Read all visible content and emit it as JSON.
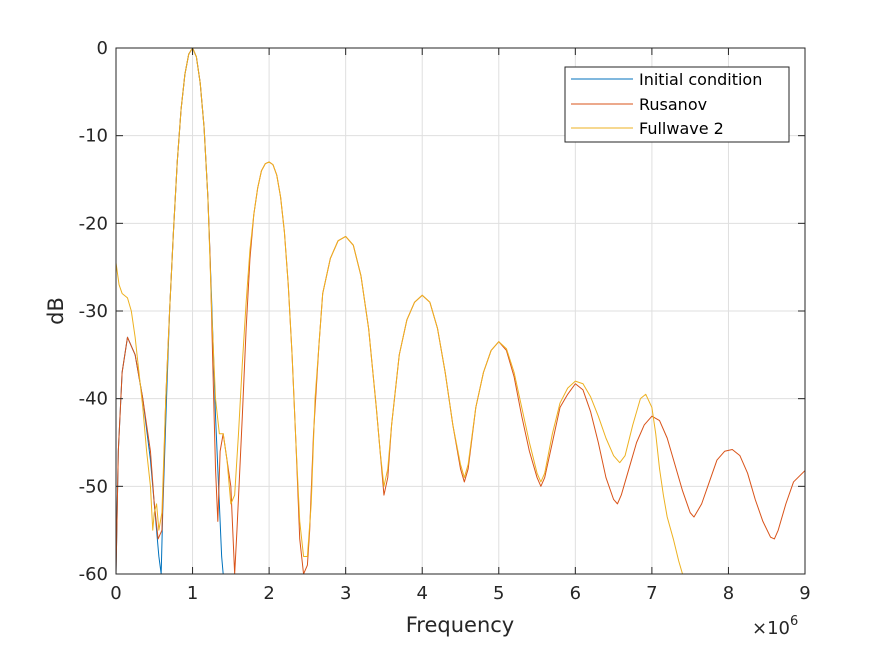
{
  "chart_data": {
    "type": "line",
    "title": "",
    "xlabel": "Frequency",
    "ylabel": "dB",
    "x_multiplier": "×10",
    "x_exponent": "6",
    "xlim": [
      0,
      9000000
    ],
    "ylim": [
      -60,
      0
    ],
    "xticks": [
      0,
      1000000,
      2000000,
      3000000,
      4000000,
      5000000,
      6000000,
      7000000,
      8000000,
      9000000
    ],
    "xtick_labels": [
      "0",
      "1",
      "2",
      "3",
      "4",
      "5",
      "6",
      "7",
      "8",
      "9"
    ],
    "yticks": [
      0,
      -10,
      -20,
      -30,
      -40,
      -50,
      -60
    ],
    "ytick_labels": [
      "0",
      "-10",
      "-20",
      "-30",
      "-40",
      "-50",
      "-60"
    ],
    "grid": true,
    "legend_position": "top-right",
    "series": [
      {
        "name": "Initial condition",
        "color": "#0072BD",
        "points": [
          [
            0,
            -60
          ],
          [
            30000,
            -46
          ],
          [
            80000,
            -37
          ],
          [
            150000,
            -33
          ],
          [
            250000,
            -35
          ],
          [
            350000,
            -40
          ],
          [
            450000,
            -47
          ],
          [
            520000,
            -54
          ],
          [
            560000,
            -58
          ],
          [
            590000,
            -60
          ],
          [
            610000,
            -53
          ],
          [
            660000,
            -40
          ],
          [
            700000,
            -30
          ],
          [
            750000,
            -21
          ],
          [
            800000,
            -13
          ],
          [
            850000,
            -7
          ],
          [
            900000,
            -3
          ],
          [
            950000,
            -0.7
          ],
          [
            1000000,
            0
          ],
          [
            1050000,
            -1
          ],
          [
            1100000,
            -4
          ],
          [
            1150000,
            -9
          ],
          [
            1200000,
            -17
          ],
          [
            1250000,
            -29
          ],
          [
            1300000,
            -42
          ],
          [
            1350000,
            -52
          ],
          [
            1380000,
            -58
          ],
          [
            1400000,
            -60
          ]
        ]
      },
      {
        "name": "Rusanov",
        "color": "#D95319",
        "points": [
          [
            0,
            -60
          ],
          [
            30000,
            -46
          ],
          [
            80000,
            -37
          ],
          [
            150000,
            -33
          ],
          [
            250000,
            -35
          ],
          [
            350000,
            -40
          ],
          [
            450000,
            -46
          ],
          [
            500000,
            -52
          ],
          [
            550000,
            -56
          ],
          [
            600000,
            -55
          ],
          [
            650000,
            -40
          ],
          [
            700000,
            -30
          ],
          [
            750000,
            -21
          ],
          [
            800000,
            -13
          ],
          [
            850000,
            -7
          ],
          [
            900000,
            -3
          ],
          [
            950000,
            -0.7
          ],
          [
            1000000,
            0
          ],
          [
            1050000,
            -1
          ],
          [
            1100000,
            -4
          ],
          [
            1150000,
            -9
          ],
          [
            1200000,
            -17
          ],
          [
            1230000,
            -24
          ],
          [
            1270000,
            -38
          ],
          [
            1300000,
            -48
          ],
          [
            1330000,
            -54
          ],
          [
            1360000,
            -46
          ],
          [
            1400000,
            -44
          ],
          [
            1450000,
            -47
          ],
          [
            1500000,
            -50
          ],
          [
            1550000,
            -60
          ],
          [
            1580000,
            -55
          ],
          [
            1650000,
            -42
          ],
          [
            1700000,
            -32
          ],
          [
            1750000,
            -24
          ],
          [
            1800000,
            -19
          ],
          [
            1850000,
            -16
          ],
          [
            1900000,
            -14
          ],
          [
            1950000,
            -13.2
          ],
          [
            2000000,
            -13
          ],
          [
            2050000,
            -13.3
          ],
          [
            2100000,
            -14.5
          ],
          [
            2150000,
            -17
          ],
          [
            2200000,
            -21
          ],
          [
            2250000,
            -27
          ],
          [
            2300000,
            -35
          ],
          [
            2350000,
            -45
          ],
          [
            2400000,
            -56
          ],
          [
            2450000,
            -60
          ],
          [
            2500000,
            -59
          ],
          [
            2530000,
            -55
          ],
          [
            2580000,
            -44
          ],
          [
            2650000,
            -34
          ],
          [
            2700000,
            -28
          ],
          [
            2800000,
            -24
          ],
          [
            2900000,
            -22
          ],
          [
            3000000,
            -21.5
          ],
          [
            3100000,
            -22.5
          ],
          [
            3200000,
            -26
          ],
          [
            3300000,
            -32
          ],
          [
            3400000,
            -41
          ],
          [
            3450000,
            -46
          ],
          [
            3500000,
            -51
          ],
          [
            3550000,
            -49
          ],
          [
            3600000,
            -43
          ],
          [
            3700000,
            -35
          ],
          [
            3800000,
            -31
          ],
          [
            3900000,
            -29
          ],
          [
            4000000,
            -28.2
          ],
          [
            4100000,
            -29
          ],
          [
            4200000,
            -32
          ],
          [
            4300000,
            -37
          ],
          [
            4400000,
            -43
          ],
          [
            4500000,
            -48
          ],
          [
            4550000,
            -49.5
          ],
          [
            4600000,
            -48
          ],
          [
            4700000,
            -41
          ],
          [
            4800000,
            -37
          ],
          [
            4900000,
            -34.5
          ],
          [
            5000000,
            -33.5
          ],
          [
            5100000,
            -34.5
          ],
          [
            5200000,
            -37.5
          ],
          [
            5300000,
            -42
          ],
          [
            5400000,
            -46
          ],
          [
            5500000,
            -49
          ],
          [
            5550000,
            -50
          ],
          [
            5600000,
            -49
          ],
          [
            5700000,
            -45
          ],
          [
            5800000,
            -41
          ],
          [
            5900000,
            -39.5
          ],
          [
            6000000,
            -38.3
          ],
          [
            6100000,
            -39
          ],
          [
            6200000,
            -41.5
          ],
          [
            6300000,
            -45
          ],
          [
            6400000,
            -49
          ],
          [
            6500000,
            -51.5
          ],
          [
            6550000,
            -52
          ],
          [
            6600000,
            -51
          ],
          [
            6700000,
            -48
          ],
          [
            6800000,
            -45
          ],
          [
            6900000,
            -43
          ],
          [
            7000000,
            -42
          ],
          [
            7100000,
            -42.5
          ],
          [
            7200000,
            -44.5
          ],
          [
            7300000,
            -47.5
          ],
          [
            7400000,
            -50.5
          ],
          [
            7500000,
            -53
          ],
          [
            7550000,
            -53.5
          ],
          [
            7650000,
            -52
          ],
          [
            7750000,
            -49.5
          ],
          [
            7850000,
            -47
          ],
          [
            7950000,
            -46
          ],
          [
            8050000,
            -45.8
          ],
          [
            8150000,
            -46.5
          ],
          [
            8250000,
            -48.5
          ],
          [
            8350000,
            -51.5
          ],
          [
            8450000,
            -54
          ],
          [
            8550000,
            -55.8
          ],
          [
            8600000,
            -56
          ],
          [
            8650000,
            -55
          ],
          [
            8750000,
            -52
          ],
          [
            8850000,
            -49.5
          ],
          [
            9000000,
            -48.2
          ]
        ]
      },
      {
        "name": "Fullwave 2",
        "color": "#EDB120",
        "points": [
          [
            0,
            -24.5
          ],
          [
            40000,
            -27
          ],
          [
            80000,
            -28
          ],
          [
            150000,
            -28.5
          ],
          [
            200000,
            -30
          ],
          [
            250000,
            -33
          ],
          [
            300000,
            -37
          ],
          [
            350000,
            -41
          ],
          [
            400000,
            -46
          ],
          [
            450000,
            -50
          ],
          [
            480000,
            -55
          ],
          [
            500000,
            -53
          ],
          [
            530000,
            -52
          ],
          [
            560000,
            -55
          ],
          [
            600000,
            -53
          ],
          [
            650000,
            -40
          ],
          [
            700000,
            -30
          ],
          [
            750000,
            -21
          ],
          [
            800000,
            -13
          ],
          [
            850000,
            -7
          ],
          [
            900000,
            -3
          ],
          [
            950000,
            -0.7
          ],
          [
            1000000,
            0
          ],
          [
            1050000,
            -1
          ],
          [
            1100000,
            -4
          ],
          [
            1150000,
            -9
          ],
          [
            1200000,
            -17
          ],
          [
            1250000,
            -30
          ],
          [
            1300000,
            -40
          ],
          [
            1350000,
            -44
          ],
          [
            1400000,
            -44
          ],
          [
            1450000,
            -47
          ],
          [
            1500000,
            -52
          ],
          [
            1550000,
            -51
          ],
          [
            1600000,
            -44
          ],
          [
            1650000,
            -36
          ],
          [
            1700000,
            -29
          ],
          [
            1750000,
            -23
          ],
          [
            1800000,
            -19
          ],
          [
            1850000,
            -16
          ],
          [
            1900000,
            -14
          ],
          [
            1950000,
            -13.2
          ],
          [
            2000000,
            -13
          ],
          [
            2050000,
            -13.3
          ],
          [
            2100000,
            -14.5
          ],
          [
            2150000,
            -17
          ],
          [
            2200000,
            -21
          ],
          [
            2250000,
            -27
          ],
          [
            2300000,
            -35
          ],
          [
            2350000,
            -45
          ],
          [
            2400000,
            -54
          ],
          [
            2450000,
            -58
          ],
          [
            2500000,
            -58
          ],
          [
            2550000,
            -52
          ],
          [
            2600000,
            -40
          ],
          [
            2650000,
            -34
          ],
          [
            2700000,
            -28
          ],
          [
            2800000,
            -24
          ],
          [
            2900000,
            -22
          ],
          [
            3000000,
            -21.5
          ],
          [
            3100000,
            -22.5
          ],
          [
            3200000,
            -26
          ],
          [
            3300000,
            -32
          ],
          [
            3400000,
            -41
          ],
          [
            3450000,
            -46
          ],
          [
            3500000,
            -50
          ],
          [
            3550000,
            -48
          ],
          [
            3600000,
            -43
          ],
          [
            3700000,
            -35
          ],
          [
            3800000,
            -31
          ],
          [
            3900000,
            -29
          ],
          [
            4000000,
            -28.2
          ],
          [
            4100000,
            -29
          ],
          [
            4200000,
            -32
          ],
          [
            4300000,
            -37
          ],
          [
            4400000,
            -43
          ],
          [
            4500000,
            -47.5
          ],
          [
            4550000,
            -49
          ],
          [
            4600000,
            -47.5
          ],
          [
            4700000,
            -41
          ],
          [
            4800000,
            -37
          ],
          [
            4900000,
            -34.5
          ],
          [
            5000000,
            -33.5
          ],
          [
            5100000,
            -34.3
          ],
          [
            5200000,
            -37
          ],
          [
            5300000,
            -41
          ],
          [
            5400000,
            -45
          ],
          [
            5500000,
            -48.5
          ],
          [
            5550000,
            -49.5
          ],
          [
            5600000,
            -48.5
          ],
          [
            5700000,
            -44
          ],
          [
            5800000,
            -40.5
          ],
          [
            5900000,
            -38.8
          ],
          [
            6000000,
            -38
          ],
          [
            6100000,
            -38.3
          ],
          [
            6200000,
            -39.8
          ],
          [
            6300000,
            -42
          ],
          [
            6400000,
            -44.5
          ],
          [
            6500000,
            -46.5
          ],
          [
            6580000,
            -47.3
          ],
          [
            6650000,
            -46.5
          ],
          [
            6750000,
            -43
          ],
          [
            6850000,
            -40
          ],
          [
            6920000,
            -39.5
          ],
          [
            7000000,
            -41
          ],
          [
            7050000,
            -44
          ],
          [
            7100000,
            -48
          ],
          [
            7150000,
            -51
          ],
          [
            7200000,
            -53.5
          ],
          [
            7280000,
            -56
          ],
          [
            7350000,
            -58.5
          ],
          [
            7400000,
            -60
          ]
        ]
      }
    ]
  }
}
